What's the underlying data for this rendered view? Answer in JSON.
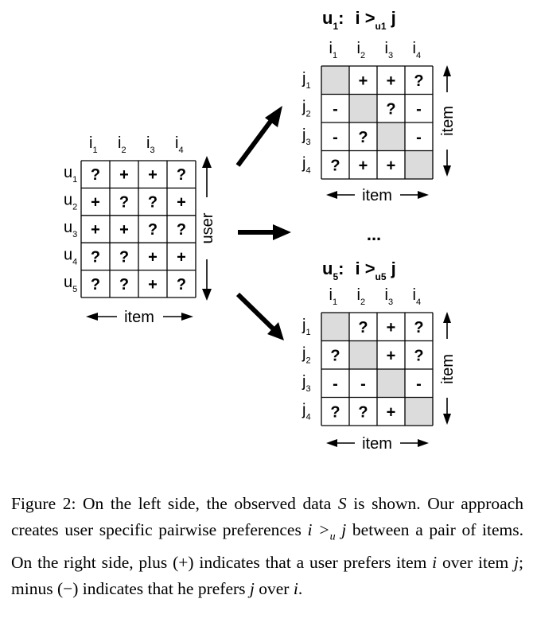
{
  "observed": {
    "items": [
      [
        "i",
        "1"
      ],
      [
        "i",
        "2"
      ],
      [
        "i",
        "3"
      ],
      [
        "i",
        "4"
      ]
    ],
    "users": [
      [
        "u",
        "1"
      ],
      [
        "u",
        "2"
      ],
      [
        "u",
        "3"
      ],
      [
        "u",
        "4"
      ],
      [
        "u",
        "5"
      ]
    ],
    "cells": [
      [
        "?",
        "+",
        "+",
        "?"
      ],
      [
        "+",
        "?",
        "?",
        "+"
      ],
      [
        "+",
        "+",
        "?",
        "?"
      ],
      [
        "?",
        "?",
        "+",
        "+"
      ],
      [
        "?",
        "?",
        "+",
        "?"
      ]
    ],
    "axis_user": "user",
    "axis_item": "item"
  },
  "pairwise": [
    {
      "title_u": "u",
      "title_u_sub": "1",
      "title_colon": ":",
      "title_rel": "i >",
      "title_rel_sub": "u1",
      "title_j": "j",
      "cols": [
        [
          "i",
          "1"
        ],
        [
          "i",
          "2"
        ],
        [
          "i",
          "3"
        ],
        [
          "i",
          "4"
        ]
      ],
      "rows": [
        [
          "j",
          "1"
        ],
        [
          "j",
          "2"
        ],
        [
          "j",
          "3"
        ],
        [
          "j",
          "4"
        ]
      ],
      "cells": [
        [
          "",
          "+",
          "+",
          "?"
        ],
        [
          "-",
          "",
          "?",
          "-"
        ],
        [
          "-",
          "?",
          "",
          "-"
        ],
        [
          "?",
          "+",
          "+",
          ""
        ]
      ],
      "axis_right": "item",
      "axis_bottom": "item"
    },
    {
      "title_u": "u",
      "title_u_sub": "5",
      "title_colon": ":",
      "title_rel": "i >",
      "title_rel_sub": "u5",
      "title_j": "j",
      "cols": [
        [
          "i",
          "1"
        ],
        [
          "i",
          "2"
        ],
        [
          "i",
          "3"
        ],
        [
          "i",
          "4"
        ]
      ],
      "rows": [
        [
          "j",
          "1"
        ],
        [
          "j",
          "2"
        ],
        [
          "j",
          "3"
        ],
        [
          "j",
          "4"
        ]
      ],
      "cells": [
        [
          "",
          "?",
          "+",
          "?"
        ],
        [
          "?",
          "",
          "+",
          "?"
        ],
        [
          "-",
          "-",
          "",
          "-"
        ],
        [
          "?",
          "?",
          "+",
          ""
        ]
      ],
      "axis_right": "item",
      "axis_bottom": "item"
    }
  ],
  "ellipsis": "...",
  "colors": {
    "diagonal": "#dcdcdc",
    "ink": "#000000"
  },
  "caption": {
    "label": "Figure 2:",
    "text1": " On the left side, the observed data ",
    "S": "S",
    "text2": " is shown. Our approach creates user specific pairwise preferences ",
    "rel": "i >",
    "rel_sub": "u",
    "rel_j": " j",
    "text3": " between a pair of items. On the right side, plus (+) indicates that a user prefers item ",
    "i1": "i",
    "text4": " over item ",
    "j1": "j",
    "text5": "; minus (−) indicates that he prefers ",
    "j2": "j",
    "text6": " over ",
    "i2": "i",
    "text7": "."
  }
}
